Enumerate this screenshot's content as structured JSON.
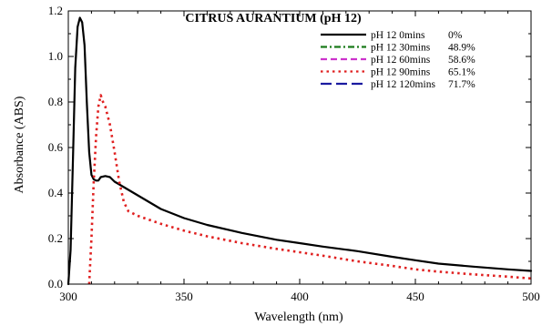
{
  "chart_data": {
    "type": "line",
    "title": "CITRUS AURANTIUM (pH 12)",
    "xlabel": "Wavelength (nm)",
    "ylabel": "Absorbance (ABS)",
    "xlim": [
      300,
      500
    ],
    "ylim": [
      0.0,
      1.2
    ],
    "xticks": [
      "300",
      "350",
      "400",
      "450",
      "500"
    ],
    "yticks": [
      "0.0",
      "0.2",
      "0.4",
      "0.6",
      "0.8",
      "1.0",
      "1.2"
    ],
    "legend_position": "top-right",
    "series": [
      {
        "name": "pH 12 0mins",
        "percent": "0%",
        "color": "#000000",
        "style": "solid",
        "x": [
          300,
          301,
          302,
          303,
          304,
          305,
          306,
          307,
          308,
          309,
          310,
          311,
          312,
          313,
          314,
          316,
          318,
          320,
          325,
          330,
          340,
          350,
          360,
          375,
          390,
          400,
          410,
          425,
          440,
          450,
          460,
          475,
          490,
          500
        ],
        "y": [
          0.0,
          0.15,
          0.55,
          0.95,
          1.13,
          1.17,
          1.15,
          1.05,
          0.8,
          0.58,
          0.48,
          0.46,
          0.455,
          0.455,
          0.47,
          0.475,
          0.47,
          0.45,
          0.42,
          0.39,
          0.33,
          0.29,
          0.26,
          0.225,
          0.195,
          0.18,
          0.165,
          0.145,
          0.12,
          0.105,
          0.09,
          0.077,
          0.065,
          0.058
        ]
      },
      {
        "name": "pH 12 30mins",
        "percent": "48.9%",
        "color": "#1a7a1a",
        "style": "dash-dot",
        "x": [],
        "y": []
      },
      {
        "name": "pH 12 60mins",
        "percent": "58.6%",
        "color": "#cc33cc",
        "style": "dash",
        "x": [],
        "y": []
      },
      {
        "name": "pH 12 90mins",
        "percent": "65.1%",
        "color": "#e02020",
        "style": "dot",
        "x": [
          309,
          310,
          311,
          312,
          313,
          314,
          315,
          316,
          318,
          320,
          322,
          324,
          326,
          330,
          340,
          350,
          360,
          375,
          390,
          400,
          410,
          425,
          440,
          450,
          460,
          475,
          490,
          500
        ],
        "y": [
          0.0,
          0.2,
          0.45,
          0.65,
          0.78,
          0.83,
          0.8,
          0.78,
          0.7,
          0.58,
          0.45,
          0.36,
          0.32,
          0.3,
          0.265,
          0.235,
          0.21,
          0.18,
          0.155,
          0.14,
          0.125,
          0.1,
          0.08,
          0.065,
          0.055,
          0.043,
          0.033,
          0.025
        ]
      },
      {
        "name": "pH 12 120mins",
        "percent": "71.7%",
        "color": "#1a1aa0",
        "style": "long-dash",
        "x": [],
        "y": []
      }
    ]
  }
}
